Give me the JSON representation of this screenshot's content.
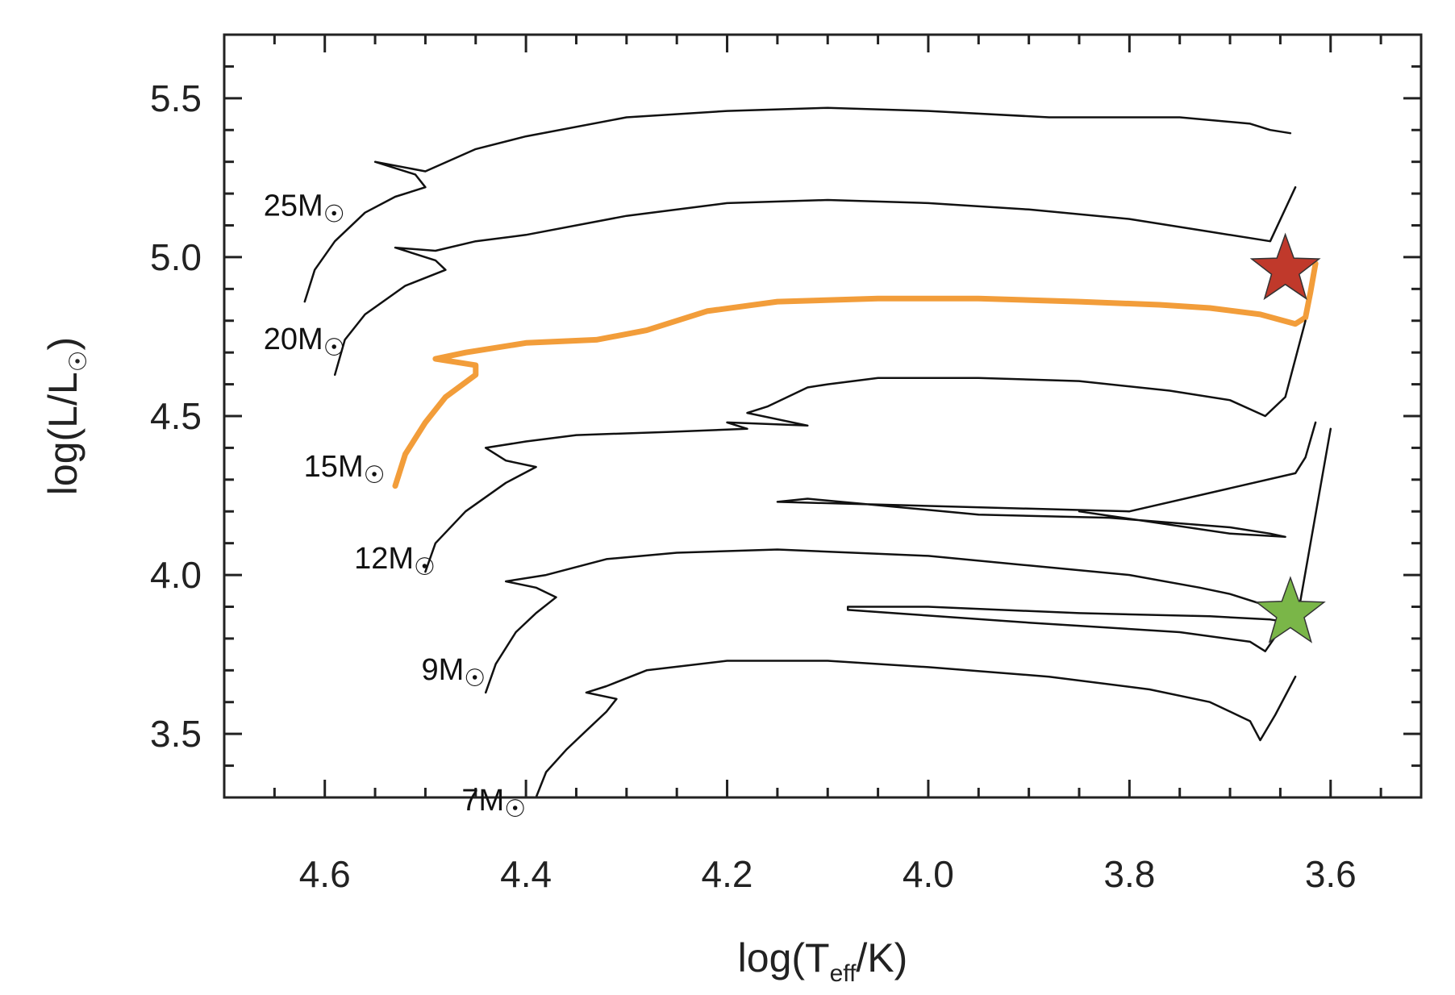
{
  "chart_data": {
    "type": "line",
    "title": "",
    "xlabel": {
      "main": "log(T",
      "sub": "eff",
      "tail": "/K)"
    },
    "ylabel": {
      "main": "log(L/L",
      "sub": "☉",
      "tail": ")"
    },
    "xlim": [
      4.7,
      3.51
    ],
    "ylim": [
      3.3,
      5.7
    ],
    "x_ticks": [
      4.6,
      4.4,
      4.2,
      4.0,
      3.8,
      3.6
    ],
    "x_tick_labels": [
      "4.6",
      "4.4",
      "4.2",
      "4.0",
      "3.8",
      "3.6"
    ],
    "y_ticks": [
      3.5,
      4.0,
      4.5,
      5.0,
      5.5
    ],
    "y_tick_labels": [
      "3.5",
      "4.0",
      "4.5",
      "5.0",
      "5.5"
    ],
    "x_minor_step": 0.05,
    "y_minor_step": 0.1,
    "colors": {
      "track": "#111111",
      "highlight": "#f29d3a",
      "red_star": "#c0392b",
      "green_star": "#7ab648",
      "axis": "#222222"
    },
    "series": [
      {
        "name": "25M",
        "label": "25M",
        "label_sub": "☉",
        "label_at": [
          4.58,
          5.13
        ],
        "color": "#111111",
        "points": [
          [
            4.62,
            4.86
          ],
          [
            4.61,
            4.96
          ],
          [
            4.59,
            5.05
          ],
          [
            4.56,
            5.14
          ],
          [
            4.53,
            5.19
          ],
          [
            4.5,
            5.22
          ],
          [
            4.51,
            5.26
          ],
          [
            4.55,
            5.3
          ],
          [
            4.5,
            5.27
          ],
          [
            4.45,
            5.34
          ],
          [
            4.4,
            5.38
          ],
          [
            4.3,
            5.44
          ],
          [
            4.2,
            5.46
          ],
          [
            4.1,
            5.47
          ],
          [
            4.0,
            5.46
          ],
          [
            3.88,
            5.44
          ],
          [
            3.75,
            5.44
          ],
          [
            3.68,
            5.42
          ],
          [
            3.66,
            5.4
          ],
          [
            3.64,
            5.39
          ]
        ]
      },
      {
        "name": "20M",
        "label": "20M",
        "label_sub": "☉",
        "label_at": [
          4.58,
          4.71
        ],
        "color": "#111111",
        "points": [
          [
            4.59,
            4.63
          ],
          [
            4.58,
            4.74
          ],
          [
            4.56,
            4.82
          ],
          [
            4.52,
            4.91
          ],
          [
            4.48,
            4.96
          ],
          [
            4.49,
            4.99
          ],
          [
            4.53,
            5.03
          ],
          [
            4.49,
            5.02
          ],
          [
            4.45,
            5.05
          ],
          [
            4.4,
            5.07
          ],
          [
            4.3,
            5.13
          ],
          [
            4.2,
            5.17
          ],
          [
            4.1,
            5.18
          ],
          [
            4.0,
            5.17
          ],
          [
            3.9,
            5.15
          ],
          [
            3.8,
            5.12
          ],
          [
            3.72,
            5.08
          ],
          [
            3.66,
            5.05
          ],
          [
            3.635,
            5.22
          ]
        ]
      },
      {
        "name": "15M",
        "label": "15M",
        "label_sub": "☉",
        "label_at": [
          4.54,
          4.31
        ],
        "color": "#f29d3a",
        "highlight": true,
        "points": [
          [
            4.53,
            4.28
          ],
          [
            4.52,
            4.38
          ],
          [
            4.5,
            4.48
          ],
          [
            4.48,
            4.56
          ],
          [
            4.45,
            4.63
          ],
          [
            4.45,
            4.66
          ],
          [
            4.49,
            4.68
          ],
          [
            4.46,
            4.7
          ],
          [
            4.4,
            4.73
          ],
          [
            4.33,
            4.74
          ],
          [
            4.28,
            4.77
          ],
          [
            4.22,
            4.83
          ],
          [
            4.15,
            4.86
          ],
          [
            4.05,
            4.87
          ],
          [
            3.95,
            4.87
          ],
          [
            3.85,
            4.86
          ],
          [
            3.77,
            4.85
          ],
          [
            3.72,
            4.84
          ],
          [
            3.67,
            4.82
          ],
          [
            3.635,
            4.79
          ],
          [
            3.625,
            4.81
          ],
          [
            3.62,
            4.89
          ],
          [
            3.615,
            4.98
          ]
        ]
      },
      {
        "name": "12M",
        "label": "12M",
        "label_sub": "☉",
        "label_at": [
          4.49,
          4.02
        ],
        "color": "#111111",
        "points": [
          [
            4.5,
            4.01
          ],
          [
            4.49,
            4.1
          ],
          [
            4.46,
            4.2
          ],
          [
            4.42,
            4.29
          ],
          [
            4.39,
            4.34
          ],
          [
            4.42,
            4.36
          ],
          [
            4.44,
            4.4
          ],
          [
            4.4,
            4.42
          ],
          [
            4.35,
            4.44
          ],
          [
            4.26,
            4.45
          ],
          [
            4.18,
            4.46
          ],
          [
            4.2,
            4.48
          ],
          [
            4.12,
            4.47
          ],
          [
            4.18,
            4.51
          ],
          [
            4.16,
            4.53
          ],
          [
            4.12,
            4.59
          ],
          [
            4.1,
            4.6
          ],
          [
            4.05,
            4.62
          ],
          [
            3.95,
            4.62
          ],
          [
            3.85,
            4.61
          ],
          [
            3.76,
            4.58
          ],
          [
            3.7,
            4.55
          ],
          [
            3.665,
            4.5
          ],
          [
            3.645,
            4.56
          ],
          [
            3.625,
            4.8
          ]
        ]
      },
      {
        "name": "9M",
        "label": "9M",
        "label_sub": "☉",
        "label_at": [
          4.44,
          3.67
        ],
        "color": "#111111",
        "points": [
          [
            4.44,
            3.63
          ],
          [
            4.43,
            3.72
          ],
          [
            4.41,
            3.82
          ],
          [
            4.39,
            3.88
          ],
          [
            4.37,
            3.93
          ],
          [
            4.39,
            3.96
          ],
          [
            4.42,
            3.98
          ],
          [
            4.38,
            4.0
          ],
          [
            4.32,
            4.05
          ],
          [
            4.25,
            4.07
          ],
          [
            4.15,
            4.08
          ],
          [
            4.0,
            4.06
          ],
          [
            3.9,
            4.03
          ],
          [
            3.8,
            4.0
          ],
          [
            3.73,
            3.96
          ],
          [
            3.7,
            3.94
          ],
          [
            3.66,
            3.9
          ],
          [
            3.64,
            3.85
          ],
          [
            3.66,
            3.86
          ],
          [
            3.72,
            3.87
          ],
          [
            3.85,
            3.88
          ],
          [
            4.0,
            3.9
          ],
          [
            4.08,
            3.9
          ],
          [
            4.08,
            3.89
          ],
          [
            3.9,
            3.85
          ],
          [
            3.75,
            3.82
          ],
          [
            3.68,
            3.79
          ],
          [
            3.665,
            3.76
          ],
          [
            3.63,
            3.92
          ],
          [
            3.6,
            4.46
          ]
        ]
      },
      {
        "name": "7M",
        "label": "7M",
        "label_sub": "☉",
        "label_at": [
          4.4,
          3.26
        ],
        "color": "#111111",
        "points": [
          [
            4.39,
            3.3
          ],
          [
            4.38,
            3.38
          ],
          [
            4.36,
            3.45
          ],
          [
            4.34,
            3.51
          ],
          [
            4.32,
            3.57
          ],
          [
            4.31,
            3.61
          ],
          [
            4.34,
            3.63
          ],
          [
            4.32,
            3.65
          ],
          [
            4.28,
            3.7
          ],
          [
            4.2,
            3.73
          ],
          [
            4.1,
            3.73
          ],
          [
            4.0,
            3.71
          ],
          [
            3.88,
            3.68
          ],
          [
            3.78,
            3.64
          ],
          [
            3.72,
            3.6
          ],
          [
            3.68,
            3.54
          ],
          [
            3.67,
            3.48
          ],
          [
            3.655,
            3.56
          ],
          [
            3.635,
            3.68
          ]
        ]
      },
      {
        "name": "12M-extra",
        "label": "",
        "label_sub": "",
        "color": "#111111",
        "points": [
          [
            3.615,
            4.48
          ],
          [
            3.625,
            4.37
          ],
          [
            3.635,
            4.32
          ],
          [
            3.8,
            4.2
          ],
          [
            4.15,
            4.23
          ],
          [
            4.12,
            4.24
          ],
          [
            3.95,
            4.19
          ],
          [
            3.82,
            4.18
          ],
          [
            3.7,
            4.15
          ],
          [
            3.66,
            4.13
          ],
          [
            3.645,
            4.12
          ],
          [
            3.7,
            4.13
          ],
          [
            3.85,
            4.2
          ]
        ]
      }
    ],
    "markers": [
      {
        "name": "red-star",
        "x": 3.645,
        "y": 4.96,
        "color": "#c0392b"
      },
      {
        "name": "green-star",
        "x": 3.64,
        "y": 3.88,
        "color": "#7ab648"
      }
    ]
  }
}
